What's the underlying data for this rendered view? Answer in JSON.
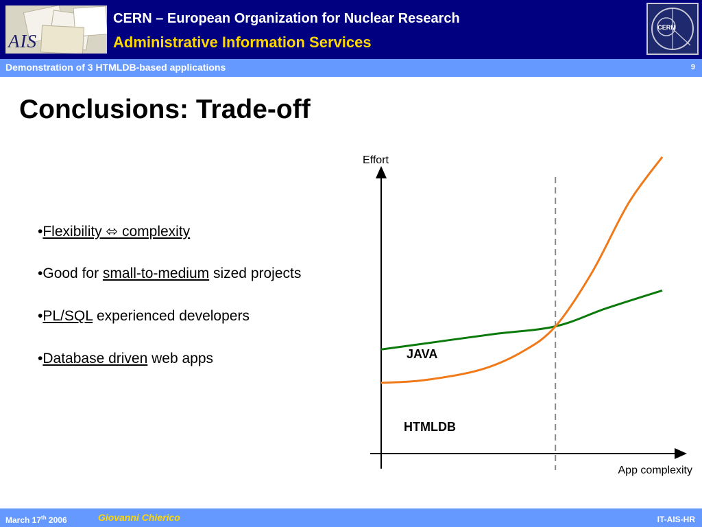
{
  "header": {
    "org_title": "CERN – European Organization for Nuclear Research",
    "org_subtitle": "Administrative Information Services",
    "ais_logo_text": "AIS",
    "cern_logo_text": "CERN"
  },
  "subbar": {
    "presentation_title": "Demonstration of 3 HTMLDB-based applications",
    "page_number": "9"
  },
  "slide": {
    "title": "Conclusions: Trade-off",
    "bullets": [
      {
        "marker": "•",
        "link1": "Flexibility ",
        "arrow": "⬄",
        "link2": " complexity",
        "rest": ""
      },
      {
        "marker": "•",
        "pre": "Good for ",
        "link": "small-to-medium",
        "rest": " sized projects"
      },
      {
        "marker": "•",
        "link": "PL/SQL",
        "rest": " experienced developers"
      },
      {
        "marker": "•",
        "link": "Database driven",
        "rest": " web apps"
      }
    ]
  },
  "chart_data": {
    "type": "line",
    "xlabel": "App complexity",
    "ylabel": "Effort",
    "xlim": [
      0,
      1
    ],
    "ylim": [
      0,
      1
    ],
    "x_ticks": [],
    "y_ticks": [],
    "grid": false,
    "series": [
      {
        "name": "JAVA",
        "color": "#0a7a0a",
        "x": [
          0,
          0.2,
          0.4,
          0.62,
          0.8,
          1.0
        ],
        "y": [
          0.28,
          0.31,
          0.34,
          0.37,
          0.44,
          0.51
        ]
      },
      {
        "name": "HTMLDB",
        "color": "#f07a1a",
        "x": [
          0,
          0.15,
          0.35,
          0.5,
          0.62,
          0.75,
          0.88,
          1.0
        ],
        "y": [
          0.15,
          0.16,
          0.2,
          0.27,
          0.37,
          0.58,
          0.85,
          1.03
        ]
      }
    ],
    "annotations": [
      {
        "type": "vertical-dashed-line",
        "x": 0.62,
        "color": "#888888"
      }
    ]
  },
  "footer": {
    "date_pre": "March 17",
    "date_sup": "th",
    "date_post": " 2006",
    "author": "Giovanni Chierico",
    "department": "IT-AIS-HR"
  }
}
